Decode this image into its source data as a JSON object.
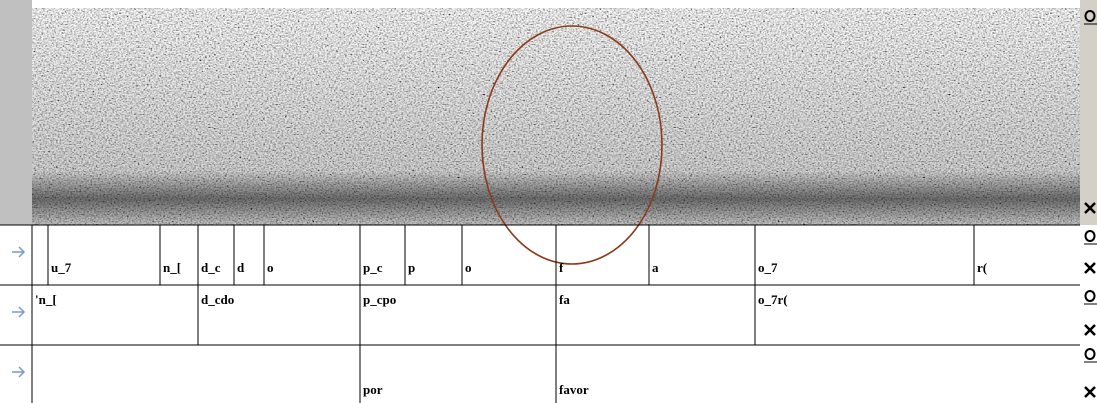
{
  "tiers": [
    {
      "labels": [
        "u_7",
        "n_[",
        "d_c",
        "d",
        "o",
        "p_c",
        "p",
        "o",
        "f",
        "a",
        "o_7",
        "r("
      ]
    },
    {
      "labels": [
        "'n_[",
        "d_cdo",
        "p_cpo",
        "fa",
        "o_7r("
      ]
    },
    {
      "labels": [
        "por",
        "favor"
      ]
    }
  ]
}
